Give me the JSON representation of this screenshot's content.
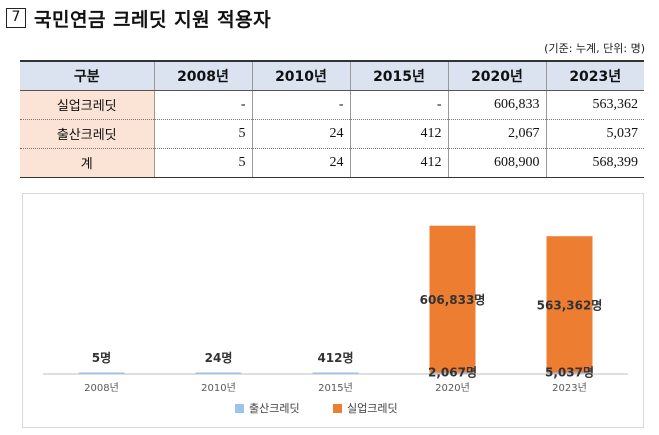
{
  "title": {
    "num": "7",
    "text": "국민연금 크레딧 지원 적용자"
  },
  "unit_note": "(기준: 누계, 단위: 명)",
  "table": {
    "headers": [
      "구분",
      "2008년",
      "2010년",
      "2015년",
      "2020년",
      "2023년"
    ],
    "rows": [
      {
        "label": "실업크레딧",
        "values": [
          "-",
          "-",
          "-",
          "606,833",
          "563,362"
        ]
      },
      {
        "label": "출산크레딧",
        "values": [
          "5",
          "24",
          "412",
          "2,067",
          "5,037"
        ]
      },
      {
        "label": "계",
        "values": [
          "5",
          "24",
          "412",
          "608,900",
          "568,399"
        ]
      }
    ]
  },
  "colors": {
    "birth": "#9dc3e6",
    "unemployment": "#ed7d31",
    "axis": "#bfbfbf",
    "label": "#333333"
  },
  "chart_data": {
    "type": "bar",
    "stacked": true,
    "categories": [
      "2008년",
      "2010년",
      "2015년",
      "2020년",
      "2023년"
    ],
    "ylim": [
      0,
      620000
    ],
    "series": [
      {
        "name": "출산크레딧",
        "values": [
          5,
          24,
          412,
          2067,
          5037
        ],
        "labels": [
          "5명",
          "24명",
          "412명",
          "2,067명",
          "5,037명"
        ]
      },
      {
        "name": "실업크레딧",
        "values": [
          0,
          0,
          0,
          606833,
          563362
        ],
        "labels": [
          "",
          "",
          "",
          "606,833명",
          "563,362명"
        ]
      }
    ],
    "legend": [
      "출산크레딧",
      "실업크레딧"
    ],
    "legend_position": "bottom"
  }
}
